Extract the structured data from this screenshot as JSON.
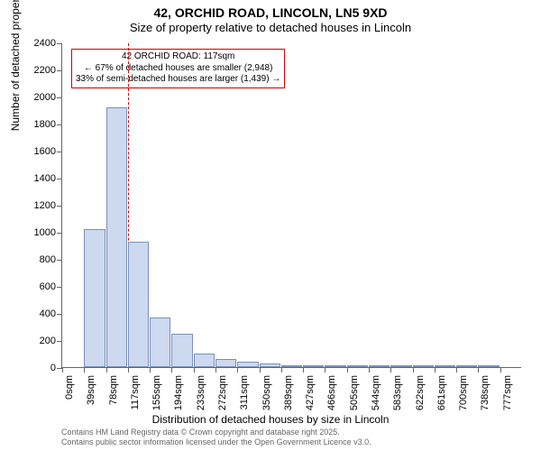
{
  "title": {
    "main": "42, ORCHID ROAD, LINCOLN, LN5 9XD",
    "sub": "Size of property relative to detached houses in Lincoln"
  },
  "chart": {
    "type": "histogram",
    "ylim": [
      0,
      2400
    ],
    "ytick_step": 200,
    "ylabel": "Number of detached properties",
    "xlabel": "Distribution of detached houses by size in Lincoln",
    "bar_fill": "#cdd9ee",
    "bar_border": "#7a8fb8",
    "categories": [
      "0sqm",
      "39sqm",
      "78sqm",
      "117sqm",
      "155sqm",
      "194sqm",
      "233sqm",
      "272sqm",
      "311sqm",
      "350sqm",
      "389sqm",
      "427sqm",
      "466sqm",
      "505sqm",
      "544sqm",
      "583sqm",
      "622sqm",
      "661sqm",
      "700sqm",
      "738sqm",
      "777sqm"
    ],
    "values": [
      0,
      1020,
      1920,
      930,
      370,
      250,
      100,
      60,
      40,
      25,
      15,
      8,
      5,
      3,
      2,
      2,
      1,
      1,
      1,
      1,
      0
    ],
    "background_color": "#ffffff"
  },
  "reference": {
    "x_index": 3,
    "color": "#cc0000"
  },
  "annotation": {
    "border_color": "#cc0000",
    "line1": "42 ORCHID ROAD: 117sqm",
    "line2": "← 67% of detached houses are smaller (2,948)",
    "line3": "33% of semi-detached houses are larger (1,439) →"
  },
  "attribution": {
    "line1": "Contains HM Land Registry data © Crown copyright and database right 2025.",
    "line2": "Contains public sector information licensed under the Open Government Licence v3.0."
  }
}
